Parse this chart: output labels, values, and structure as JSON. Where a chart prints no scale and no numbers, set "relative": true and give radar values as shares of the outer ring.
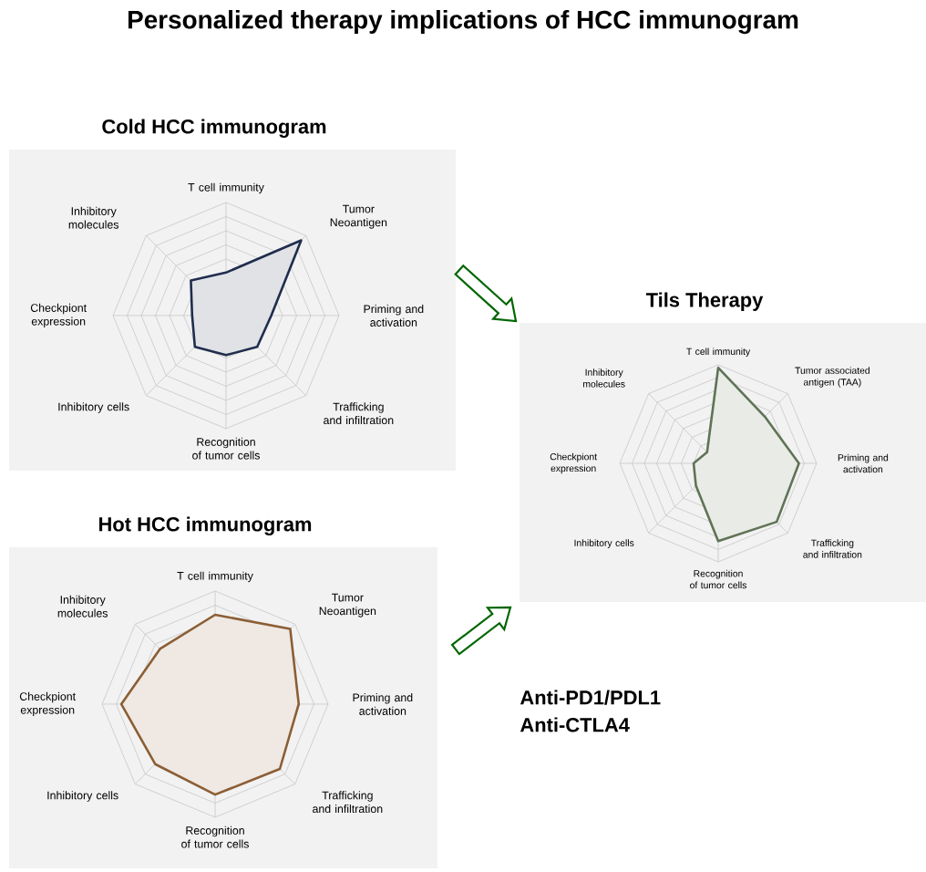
{
  "chart_data": [
    {
      "type": "other",
      "title": "Personalized therapy implications of HCC immunogram"
    },
    {
      "type": "radar",
      "title": "Cold HCC immunogram",
      "relative": true,
      "categories": [
        "T cell immunity",
        "Tumor Neoantigen",
        "Priming and activation",
        "Trafficking and infiltration",
        "Recognition of tumor cells",
        "Inhibitory cells",
        "Checkpiont expression",
        "Inhibitory molecules"
      ],
      "series": [
        {
          "color": "#1f2d4d",
          "values": [
            0.38,
            0.94,
            0.4,
            0.39,
            0.35,
            0.39,
            0.3,
            0.44
          ]
        }
      ]
    },
    {
      "type": "radar",
      "title": "Tils Therapy",
      "relative": true,
      "categories": [
        "T cell immunity",
        "Tumor associated antigen (TAA)",
        "Priming and activation",
        "Trafficking and infiltration",
        "Recognition of tumor cells",
        "Inhibitory cells",
        "Checkpiont expression",
        "Inhibitory molecules"
      ],
      "series": [
        {
          "color": "#5f7356",
          "values": [
            0.97,
            0.67,
            0.82,
            0.84,
            0.79,
            0.32,
            0.25,
            0.16
          ]
        }
      ]
    },
    {
      "type": "radar",
      "title": "Hot HCC immunogram",
      "relative": true,
      "categories": [
        "T cell immunity",
        "Tumor Neoantigen",
        "Priming and activation",
        "Trafficking and infiltration",
        "Recognition of tumor cells",
        "Inhibitory cells",
        "Checkpiont expression",
        "Inhibitory molecules"
      ],
      "series": [
        {
          "color": "#8b5e34",
          "values": [
            0.79,
            0.94,
            0.74,
            0.81,
            0.8,
            0.75,
            0.83,
            0.69
          ]
        }
      ],
      "annotations": [
        "Anti-PD1/PDL1",
        "Anti-CTLA4"
      ]
    }
  ]
}
